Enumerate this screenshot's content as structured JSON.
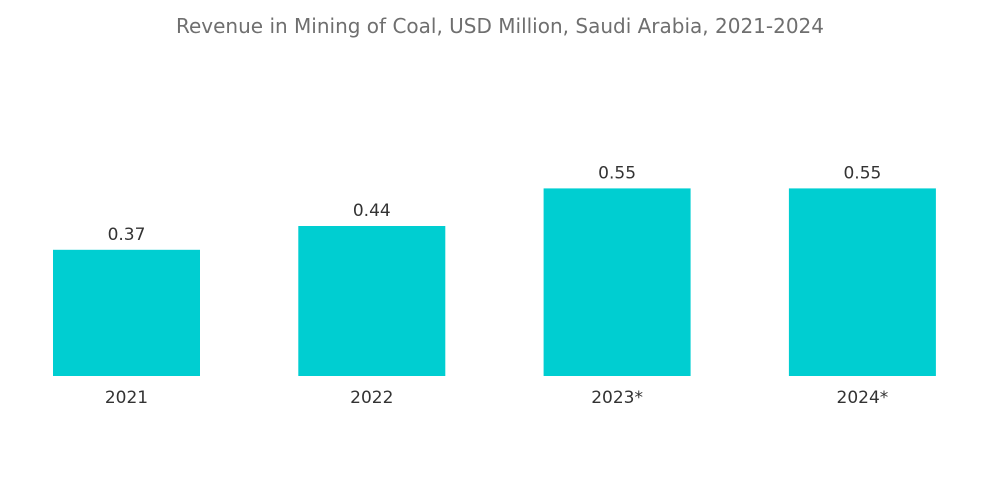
{
  "chart_data": {
    "type": "bar",
    "title": "Revenue in Mining of Coal, USD Million, Saudi Arabia, 2021-2024",
    "categories": [
      "2021",
      "2022",
      "2023*",
      "2024*"
    ],
    "values": [
      0.37,
      0.44,
      0.55,
      0.55
    ],
    "value_labels": [
      "0.37",
      "0.44",
      "0.55",
      "0.55"
    ],
    "xlabel": "",
    "ylabel": "",
    "ylim": [
      0,
      0.6
    ],
    "grid": false,
    "legend": "none",
    "colors": {
      "bar": "#00CED1",
      "title": "#6f6f6f",
      "text": "#333333"
    }
  }
}
